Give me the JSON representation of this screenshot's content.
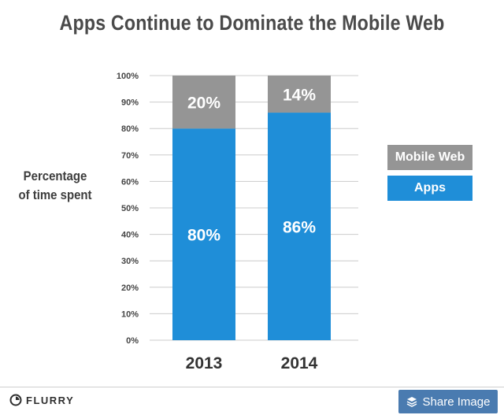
{
  "title": "Apps Continue to Dominate the Mobile Web",
  "ylabel_lines": [
    "Percentage",
    "of time spent"
  ],
  "colors": {
    "mobile_web": "#959595",
    "apps": "#1f8ed8",
    "grid": "#cccccc",
    "axis_text": "#444444",
    "share_bg": "#4a7bb0"
  },
  "chart_data": {
    "type": "bar",
    "stacked": true,
    "categories": [
      "2013",
      "2014"
    ],
    "series": [
      {
        "name": "Apps",
        "values": [
          80,
          86
        ],
        "labels": [
          "80%",
          "86%"
        ],
        "color": "#1f8ed8"
      },
      {
        "name": "Mobile Web",
        "values": [
          20,
          14
        ],
        "labels": [
          "20%",
          "14%"
        ],
        "color": "#959595"
      }
    ],
    "ylim": [
      0,
      100
    ],
    "yticks": [
      "0%",
      "10%",
      "20%",
      "30%",
      "40%",
      "50%",
      "60%",
      "70%",
      "80%",
      "90%",
      "100%"
    ],
    "ylabel": "Percentage of time spent",
    "grid": true,
    "legend_placement": "right",
    "legend": [
      "Mobile Web",
      "Apps"
    ]
  },
  "footer": {
    "brand": "FLURRY",
    "brand_icon": "flurry-logo-icon",
    "share_label": "Share Image",
    "share_icon": "layers-icon"
  }
}
